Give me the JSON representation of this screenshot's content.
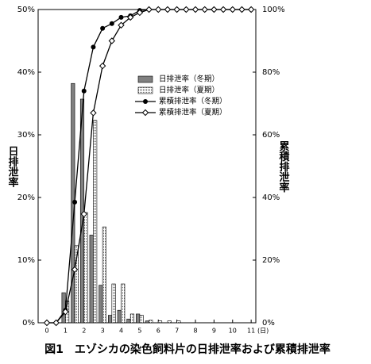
{
  "chart_data": {
    "type": "combo",
    "caption": "図1　エゾシカの染色飼料片の日排泄率および累積排泄率",
    "y_label": "日排泄率",
    "y2_label": "累積排泄率",
    "x_unit": "(日)",
    "x": [
      0,
      0.5,
      1,
      1.5,
      2,
      2.5,
      3,
      3.5,
      4,
      4.5,
      5,
      5.5,
      6,
      6.5,
      7,
      7.5,
      8,
      8.5,
      9,
      9.5,
      10,
      10.5,
      11
    ],
    "series": [
      {
        "name": "日排泄率（冬期）",
        "type": "bar",
        "color": "#808080",
        "pattern": "solid",
        "axis": "y",
        "values": [
          0,
          0,
          4.8,
          38.2,
          35.7,
          14,
          6,
          1.2,
          2,
          0.6,
          1.4,
          0.3,
          0,
          0,
          0,
          0,
          0,
          0,
          0,
          0,
          0,
          0,
          0
        ]
      },
      {
        "name": "日排泄率（夏期）",
        "type": "bar",
        "color": "#ffffff",
        "pattern": "dotted",
        "axis": "y",
        "values": [
          0,
          0,
          3.5,
          12.3,
          17.6,
          32.3,
          15.3,
          6.2,
          6.2,
          1.4,
          1.2,
          0.4,
          0.3,
          0.3,
          0.3,
          0,
          0,
          0,
          0,
          0,
          0,
          0,
          0
        ]
      },
      {
        "name": "累積排泄率（冬期）",
        "type": "line",
        "color": "#000000",
        "marker": "circle",
        "axis": "y2",
        "values": [
          0,
          0,
          4,
          38.5,
          74,
          88,
          94,
          95.5,
          97.5,
          98,
          99.7,
          100,
          100,
          100,
          100,
          100,
          100,
          100,
          100,
          100,
          100,
          100,
          100
        ]
      },
      {
        "name": "累積排泄率（夏期）",
        "type": "line",
        "color": "#000000",
        "marker": "diamond",
        "axis": "y2",
        "values": [
          0,
          0,
          3.5,
          17,
          34.7,
          67,
          82,
          90,
          95,
          97.5,
          99,
          100,
          100,
          100,
          100,
          100,
          100,
          100,
          100,
          100,
          100,
          100,
          100
        ]
      }
    ],
    "xlim": [
      -0.47,
      11.25
    ],
    "xticks": [
      0,
      1,
      2,
      3,
      4,
      5,
      6,
      7,
      8,
      9,
      10,
      11
    ],
    "ylim": [
      0,
      50
    ],
    "yticks": [
      {
        "value": 0,
        "label": "0%"
      },
      {
        "value": 10,
        "label": "10%"
      },
      {
        "value": 20,
        "label": "20%"
      },
      {
        "value": 30,
        "label": "30%"
      },
      {
        "value": 40,
        "label": "40%"
      },
      {
        "value": 50,
        "label": "50%"
      }
    ],
    "y2lim": [
      0,
      100
    ],
    "y2ticks": [
      {
        "value": 0,
        "label": "0%"
      },
      {
        "value": 20,
        "label": "20%"
      },
      {
        "value": 40,
        "label": "40%"
      },
      {
        "value": 60,
        "label": "60%"
      },
      {
        "value": 80,
        "label": "80%"
      },
      {
        "value": 100,
        "label": "100%"
      }
    ],
    "legend": "upper-right"
  }
}
